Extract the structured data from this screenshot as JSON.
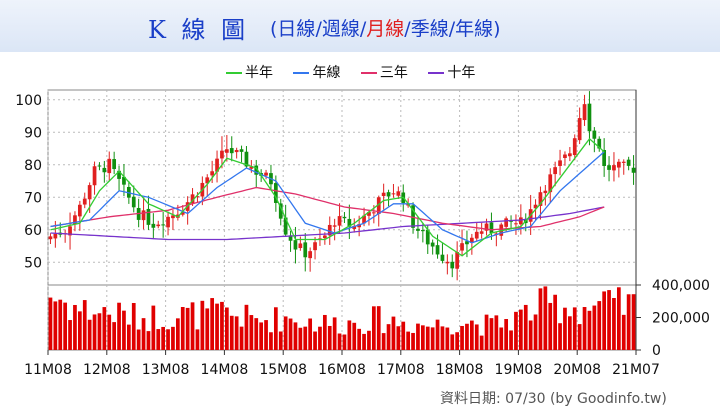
{
  "title": {
    "main": "K 線 圖",
    "open_paren": "(",
    "close_paren": ")",
    "options": [
      "日線",
      "週線",
      "月線",
      "季線",
      "年線"
    ],
    "active_index": 2,
    "separator": "/"
  },
  "legend": [
    {
      "label": "半年",
      "color": "#33cc33"
    },
    {
      "label": "年線",
      "color": "#3377ee"
    },
    {
      "label": "三年",
      "color": "#e0306a"
    },
    {
      "label": "十年",
      "color": "#7733cc"
    }
  ],
  "footer": "資料日期: 07/30  (by Goodinfo.tw)",
  "colors": {
    "up": "#e02020",
    "down": "#109010",
    "volume": "#e00000",
    "grid": "#bbbbbb"
  },
  "chart_data": {
    "type": "candlestick",
    "price_axis": {
      "ticks": [
        50,
        60,
        70,
        80,
        90,
        100
      ],
      "ylim": [
        43,
        103
      ]
    },
    "volume_axis": {
      "ticks": [
        "0",
        "200,000",
        "400,000"
      ],
      "ylim": [
        0,
        400000
      ]
    },
    "x_tick_labels": [
      "11M08",
      "12M08",
      "13M08",
      "14M08",
      "15M08",
      "16M08",
      "17M08",
      "18M08",
      "19M08",
      "20M08",
      "21M07"
    ],
    "x_start_month": "2011-08",
    "x_end_month": "2021-07",
    "months": 120,
    "close_anchors": [
      [
        0,
        58
      ],
      [
        3,
        60
      ],
      [
        6,
        67
      ],
      [
        9,
        78
      ],
      [
        12,
        80
      ],
      [
        15,
        72
      ],
      [
        18,
        65
      ],
      [
        21,
        62
      ],
      [
        24,
        64
      ],
      [
        27,
        67
      ],
      [
        30,
        72
      ],
      [
        33,
        78
      ],
      [
        36,
        85
      ],
      [
        39,
        82
      ],
      [
        42,
        78
      ],
      [
        45,
        75
      ],
      [
        48,
        60
      ],
      [
        50,
        55
      ],
      [
        52,
        53
      ],
      [
        54,
        55
      ],
      [
        56,
        58
      ],
      [
        58,
        63
      ],
      [
        60,
        62
      ],
      [
        62,
        61
      ],
      [
        64,
        64
      ],
      [
        66,
        67
      ],
      [
        68,
        70
      ],
      [
        70,
        72
      ],
      [
        72,
        70
      ],
      [
        74,
        62
      ],
      [
        76,
        58
      ],
      [
        78,
        55
      ],
      [
        80,
        52
      ],
      [
        82,
        50
      ],
      [
        84,
        54
      ],
      [
        86,
        58
      ],
      [
        88,
        60
      ],
      [
        90,
        60
      ],
      [
        92,
        61
      ],
      [
        94,
        62
      ],
      [
        96,
        62
      ],
      [
        98,
        66
      ],
      [
        100,
        72
      ],
      [
        102,
        76
      ],
      [
        104,
        80
      ],
      [
        106,
        84
      ],
      [
        108,
        95
      ],
      [
        109,
        100
      ],
      [
        110,
        92
      ],
      [
        111,
        88
      ],
      [
        112,
        86
      ],
      [
        113,
        79
      ]
    ],
    "ma_half_year": [
      [
        0,
        60
      ],
      [
        6,
        62
      ],
      [
        10,
        72
      ],
      [
        14,
        78
      ],
      [
        20,
        68
      ],
      [
        26,
        64
      ],
      [
        32,
        74
      ],
      [
        36,
        82
      ],
      [
        42,
        79
      ],
      [
        46,
        70
      ],
      [
        50,
        57
      ],
      [
        56,
        57
      ],
      [
        62,
        62
      ],
      [
        68,
        69
      ],
      [
        72,
        70
      ],
      [
        78,
        58
      ],
      [
        84,
        52
      ],
      [
        90,
        59
      ],
      [
        96,
        61
      ],
      [
        100,
        68
      ],
      [
        106,
        80
      ],
      [
        110,
        88
      ],
      [
        113,
        84
      ]
    ],
    "ma_year": [
      [
        0,
        61
      ],
      [
        8,
        63
      ],
      [
        14,
        72
      ],
      [
        20,
        70
      ],
      [
        28,
        65
      ],
      [
        34,
        73
      ],
      [
        40,
        79
      ],
      [
        46,
        75
      ],
      [
        52,
        62
      ],
      [
        58,
        59
      ],
      [
        64,
        62
      ],
      [
        70,
        68
      ],
      [
        74,
        68
      ],
      [
        80,
        60
      ],
      [
        86,
        56
      ],
      [
        92,
        59
      ],
      [
        98,
        61
      ],
      [
        104,
        72
      ],
      [
        110,
        80
      ],
      [
        113,
        84
      ]
    ],
    "ma_three_year": [
      [
        0,
        61
      ],
      [
        12,
        64
      ],
      [
        24,
        66
      ],
      [
        34,
        70
      ],
      [
        42,
        73
      ],
      [
        50,
        71
      ],
      [
        60,
        67
      ],
      [
        70,
        65
      ],
      [
        80,
        62
      ],
      [
        90,
        60
      ],
      [
        100,
        61
      ],
      [
        108,
        64
      ],
      [
        113,
        67
      ]
    ],
    "ma_ten_year": [
      [
        0,
        59
      ],
      [
        12,
        58
      ],
      [
        24,
        57
      ],
      [
        36,
        57
      ],
      [
        48,
        58
      ],
      [
        60,
        59
      ],
      [
        72,
        61
      ],
      [
        84,
        62
      ],
      [
        96,
        63
      ],
      [
        106,
        65
      ],
      [
        113,
        67
      ]
    ],
    "volume_anchors": [
      [
        0,
        340000
      ],
      [
        6,
        250000
      ],
      [
        12,
        230000
      ],
      [
        18,
        200000
      ],
      [
        24,
        210000
      ],
      [
        30,
        220000
      ],
      [
        36,
        230000
      ],
      [
        42,
        180000
      ],
      [
        48,
        200000
      ],
      [
        54,
        170000
      ],
      [
        60,
        160000
      ],
      [
        66,
        190000
      ],
      [
        72,
        170000
      ],
      [
        78,
        150000
      ],
      [
        84,
        180000
      ],
      [
        90,
        150000
      ],
      [
        96,
        210000
      ],
      [
        100,
        270000
      ],
      [
        104,
        280000
      ],
      [
        108,
        260000
      ],
      [
        113,
        270000
      ]
    ]
  }
}
